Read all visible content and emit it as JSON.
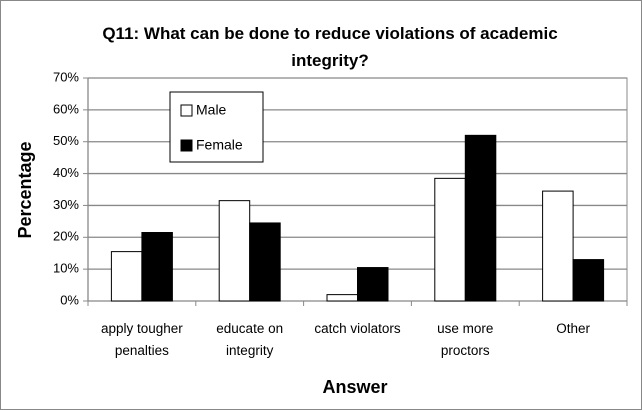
{
  "chart_data": {
    "type": "bar",
    "title": "Q11: What can be done to reduce violations of academic integrity?",
    "xlabel": "Answer",
    "ylabel": "Percentage",
    "categories": [
      "apply tougher penalties",
      "educate on integrity",
      "catch violators",
      "use more proctors",
      "Other"
    ],
    "series": [
      {
        "name": "Male",
        "color": "#ffffff",
        "values": [
          15.5,
          31.5,
          2,
          38.5,
          34.5
        ]
      },
      {
        "name": "Female",
        "color": "#000000",
        "values": [
          21.5,
          24.5,
          10.5,
          52,
          13
        ]
      }
    ],
    "ylim": [
      0,
      70
    ],
    "yticks": [
      {
        "value": 0,
        "label": "0%"
      },
      {
        "value": 10,
        "label": "10%"
      },
      {
        "value": 20,
        "label": "20%"
      },
      {
        "value": 30,
        "label": "30%"
      },
      {
        "value": 40,
        "label": "40%"
      },
      {
        "value": 50,
        "label": "50%"
      },
      {
        "value": 60,
        "label": "60%"
      },
      {
        "value": 70,
        "label": "70%"
      }
    ],
    "grid": true,
    "legend": "upper left"
  }
}
